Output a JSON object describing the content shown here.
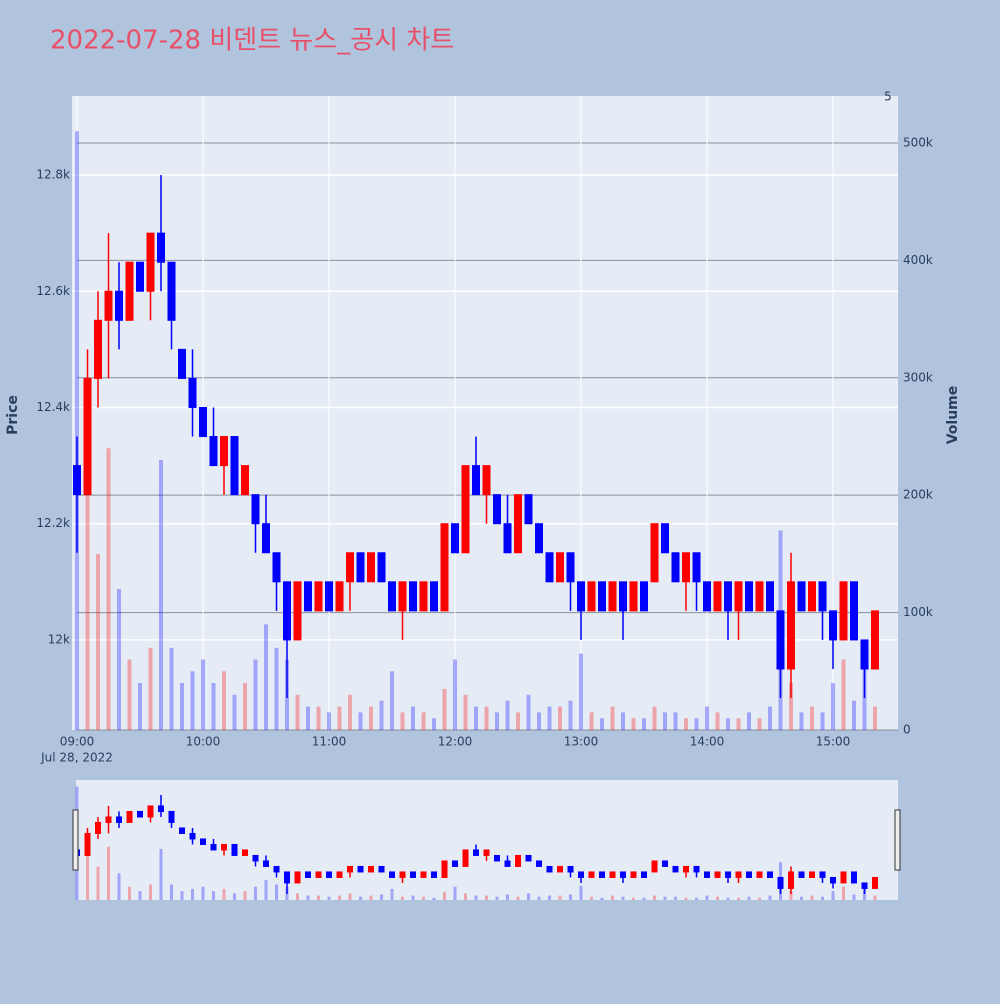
{
  "chart_data": {
    "type": "candlestick",
    "title": "2022-07-28 비덴트 뉴스_공시 차트",
    "y_label": "Price",
    "y2_label": "Volume",
    "annotation": "5",
    "x_date_label": "Jul 28, 2022",
    "increasing_color": "#ff0000",
    "decreasing_color": "#0000ff",
    "x": [
      "2022-07-28 09:00",
      "2022-07-28 09:05",
      "2022-07-28 09:10",
      "2022-07-28 09:15",
      "2022-07-28 09:20",
      "2022-07-28 09:25",
      "2022-07-28 09:30",
      "2022-07-28 09:35",
      "2022-07-28 09:40",
      "2022-07-28 09:45",
      "2022-07-28 09:50",
      "2022-07-28 09:55",
      "2022-07-28 10:00",
      "2022-07-28 10:05",
      "2022-07-28 10:10",
      "2022-07-28 10:15",
      "2022-07-28 10:20",
      "2022-07-28 10:25",
      "2022-07-28 10:30",
      "2022-07-28 10:35",
      "2022-07-28 10:40",
      "2022-07-28 10:45",
      "2022-07-28 10:50",
      "2022-07-28 10:55",
      "2022-07-28 11:00",
      "2022-07-28 11:05",
      "2022-07-28 11:10",
      "2022-07-28 11:15",
      "2022-07-28 11:20",
      "2022-07-28 11:25",
      "2022-07-28 11:30",
      "2022-07-28 11:35",
      "2022-07-28 11:40",
      "2022-07-28 11:45",
      "2022-07-28 11:50",
      "2022-07-28 11:55",
      "2022-07-28 12:00",
      "2022-07-28 12:05",
      "2022-07-28 12:10",
      "2022-07-28 12:15",
      "2022-07-28 12:20",
      "2022-07-28 12:25",
      "2022-07-28 12:30",
      "2022-07-28 12:35",
      "2022-07-28 12:40",
      "2022-07-28 12:45",
      "2022-07-28 12:50",
      "2022-07-28 12:55",
      "2022-07-28 13:00",
      "2022-07-28 13:05",
      "2022-07-28 13:10",
      "2022-07-28 13:15",
      "2022-07-28 13:20",
      "2022-07-28 13:25",
      "2022-07-28 13:30",
      "2022-07-28 13:35",
      "2022-07-28 13:40",
      "2022-07-28 13:45",
      "2022-07-28 13:50",
      "2022-07-28 13:55",
      "2022-07-28 14:00",
      "2022-07-28 14:05",
      "2022-07-28 14:10",
      "2022-07-28 14:15",
      "2022-07-28 14:20",
      "2022-07-28 14:25",
      "2022-07-28 14:30",
      "2022-07-28 14:35",
      "2022-07-28 14:40",
      "2022-07-28 14:45",
      "2022-07-28 14:50",
      "2022-07-28 14:55",
      "2022-07-28 15:00",
      "2022-07-28 15:05",
      "2022-07-28 15:10",
      "2022-07-28 15:15",
      "2022-07-28 15:20"
    ],
    "open": [
      12300,
      12250,
      12450,
      12550,
      12600,
      12550,
      12650,
      12600,
      12700,
      12650,
      12500,
      12450,
      12400,
      12350,
      12300,
      12350,
      12250,
      12250,
      12200,
      12150,
      12100,
      12000,
      12100,
      12050,
      12100,
      12050,
      12100,
      12150,
      12100,
      12150,
      12100,
      12050,
      12100,
      12050,
      12100,
      12050,
      12200,
      12150,
      12300,
      12250,
      12250,
      12200,
      12150,
      12250,
      12200,
      12150,
      12100,
      12150,
      12100,
      12050,
      12100,
      12050,
      12100,
      12050,
      12100,
      12100,
      12200,
      12150,
      12100,
      12150,
      12100,
      12050,
      12100,
      12050,
      12100,
      12050,
      12100,
      12050,
      11950,
      12100,
      12050,
      12100,
      12050,
      12000,
      12100,
      12000,
      11950
    ],
    "high": [
      12350,
      12500,
      12600,
      12700,
      12650,
      12650,
      12650,
      12700,
      12800,
      12650,
      12500,
      12500,
      12400,
      12400,
      12350,
      12350,
      12300,
      12250,
      12250,
      12150,
      12100,
      12100,
      12100,
      12100,
      12100,
      12100,
      12150,
      12150,
      12150,
      12150,
      12100,
      12100,
      12100,
      12100,
      12100,
      12200,
      12200,
      12300,
      12350,
      12300,
      12250,
      12250,
      12250,
      12250,
      12200,
      12150,
      12150,
      12150,
      12100,
      12100,
      12100,
      12100,
      12100,
      12100,
      12100,
      12200,
      12200,
      12150,
      12150,
      12150,
      12100,
      12100,
      12100,
      12100,
      12100,
      12100,
      12100,
      12050,
      12150,
      12100,
      12100,
      12100,
      12050,
      12100,
      12100,
      12000,
      12050
    ],
    "low": [
      12150,
      12250,
      12400,
      12450,
      12500,
      12550,
      12600,
      12550,
      12600,
      12500,
      12450,
      12350,
      12350,
      12300,
      12250,
      12250,
      12250,
      12150,
      12150,
      12050,
      11900,
      12000,
      12050,
      12050,
      12050,
      12050,
      12050,
      12100,
      12100,
      12100,
      12050,
      12000,
      12050,
      12050,
      12050,
      12050,
      12150,
      12150,
      12250,
      12200,
      12200,
      12150,
      12150,
      12200,
      12150,
      12100,
      12100,
      12050,
      12000,
      12050,
      12050,
      12050,
      12000,
      12050,
      12050,
      12100,
      12150,
      12100,
      12050,
      12050,
      12050,
      12050,
      12000,
      12000,
      12050,
      12050,
      12050,
      11900,
      11900,
      12050,
      12050,
      12000,
      11950,
      12000,
      12000,
      11900,
      11950
    ],
    "close": [
      12250,
      12450,
      12550,
      12600,
      12550,
      12650,
      12600,
      12700,
      12650,
      12550,
      12450,
      12400,
      12350,
      12300,
      12350,
      12250,
      12300,
      12200,
      12150,
      12100,
      12000,
      12100,
      12050,
      12100,
      12050,
      12100,
      12150,
      12100,
      12150,
      12100,
      12050,
      12100,
      12050,
      12100,
      12050,
      12200,
      12150,
      12300,
      12250,
      12300,
      12200,
      12150,
      12250,
      12200,
      12150,
      12100,
      12150,
      12100,
      12050,
      12100,
      12050,
      12100,
      12050,
      12100,
      12050,
      12200,
      12150,
      12100,
      12150,
      12100,
      12050,
      12100,
      12050,
      12100,
      12050,
      12100,
      12050,
      11950,
      12100,
      12050,
      12100,
      12050,
      12000,
      12100,
      12000,
      11950,
      12050
    ],
    "volume": [
      510000,
      280000,
      150000,
      240000,
      120000,
      60000,
      40000,
      70000,
      230000,
      70000,
      40000,
      50000,
      60000,
      40000,
      50000,
      30000,
      40000,
      60000,
      90000,
      70000,
      60000,
      30000,
      20000,
      20000,
      15000,
      20000,
      30000,
      15000,
      20000,
      25000,
      50000,
      15000,
      20000,
      15000,
      10000,
      35000,
      60000,
      30000,
      20000,
      20000,
      15000,
      25000,
      15000,
      30000,
      15000,
      20000,
      20000,
      25000,
      65000,
      15000,
      10000,
      20000,
      15000,
      10000,
      10000,
      20000,
      15000,
      15000,
      10000,
      10000,
      20000,
      15000,
      10000,
      10000,
      15000,
      10000,
      20000,
      170000,
      40000,
      15000,
      20000,
      15000,
      40000,
      60000,
      25000,
      65000,
      20000
    ],
    "xlim": [
      "2022-07-28 08:57:37",
      "2022-07-28 15:30:57"
    ],
    "xticks": [
      {
        "value": "2022-07-28 09:00",
        "label": "09:00"
      },
      {
        "value": "2022-07-28 10:00",
        "label": "10:00"
      },
      {
        "value": "2022-07-28 11:00",
        "label": "11:00"
      },
      {
        "value": "2022-07-28 12:00",
        "label": "12:00"
      },
      {
        "value": "2022-07-28 13:00",
        "label": "13:00"
      },
      {
        "value": "2022-07-28 14:00",
        "label": "14:00"
      },
      {
        "value": "2022-07-28 15:00",
        "label": "15:00"
      }
    ],
    "ylim": [
      11845,
      12936
    ],
    "yticks": [
      {
        "value": 12000,
        "label": "12k"
      },
      {
        "value": 12200,
        "label": "12.2k"
      },
      {
        "value": 12400,
        "label": "12.4k"
      },
      {
        "value": 12600,
        "label": "12.6k"
      },
      {
        "value": 12800,
        "label": "12.8k"
      }
    ],
    "y2lim": [
      0,
      540000
    ],
    "y2ticks": [
      0,
      {
        "value": 100000,
        "label": "100k"
      },
      {
        "value": 200000,
        "label": "200k"
      },
      {
        "value": 300000,
        "label": "300k"
      },
      {
        "value": 400000,
        "label": "400k"
      },
      {
        "value": 500000,
        "label": "500k"
      }
    ],
    "grid": true,
    "rangeslider": true
  }
}
